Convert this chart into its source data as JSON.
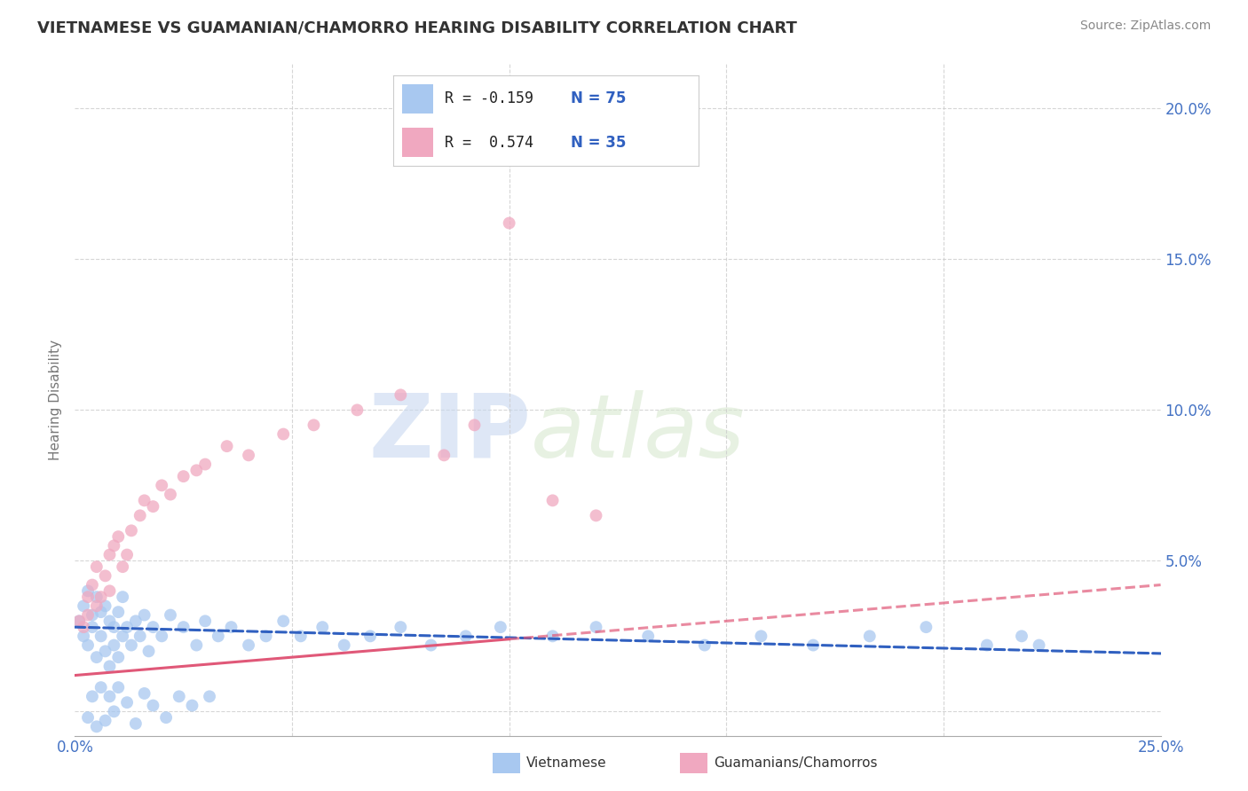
{
  "title": "VIETNAMESE VS GUAMANIAN/CHAMORRO HEARING DISABILITY CORRELATION CHART",
  "source": "Source: ZipAtlas.com",
  "ylabel_label": "Hearing Disability",
  "x_min": 0.0,
  "x_max": 0.25,
  "y_min": -0.008,
  "y_max": 0.215,
  "r_vietnamese": -0.159,
  "n_vietnamese": 75,
  "r_guamanian": 0.574,
  "n_guamanian": 35,
  "color_vietnamese": "#A8C8F0",
  "color_guamanian": "#F0A8C0",
  "color_trend_vietnamese": "#3060C0",
  "color_trend_guamanian": "#E05878",
  "watermark_zip": "ZIP",
  "watermark_atlas": "atlas",
  "legend_label_vietnamese": "Vietnamese",
  "legend_label_guamanian": "Guamanians/Chamorros",
  "viet_intercept": 0.028,
  "viet_slope": -0.035,
  "guam_intercept": 0.012,
  "guam_slope": 0.12,
  "vietnamese_x": [
    0.001,
    0.002,
    0.002,
    0.003,
    0.003,
    0.004,
    0.004,
    0.005,
    0.005,
    0.006,
    0.006,
    0.007,
    0.007,
    0.008,
    0.008,
    0.009,
    0.009,
    0.01,
    0.01,
    0.011,
    0.011,
    0.012,
    0.013,
    0.014,
    0.015,
    0.016,
    0.017,
    0.018,
    0.02,
    0.022,
    0.025,
    0.028,
    0.03,
    0.033,
    0.036,
    0.04,
    0.044,
    0.048,
    0.052,
    0.057,
    0.062,
    0.068,
    0.075,
    0.082,
    0.09,
    0.098,
    0.11,
    0.12,
    0.132,
    0.145,
    0.158,
    0.17,
    0.183,
    0.196,
    0.21,
    0.218,
    0.222,
    0.003,
    0.004,
    0.005,
    0.006,
    0.007,
    0.008,
    0.009,
    0.01,
    0.012,
    0.014,
    0.016,
    0.018,
    0.021,
    0.024,
    0.027,
    0.031
  ],
  "vietnamese_y": [
    0.03,
    0.025,
    0.035,
    0.022,
    0.04,
    0.028,
    0.032,
    0.018,
    0.038,
    0.025,
    0.033,
    0.02,
    0.035,
    0.015,
    0.03,
    0.022,
    0.028,
    0.018,
    0.033,
    0.025,
    0.038,
    0.028,
    0.022,
    0.03,
    0.025,
    0.032,
    0.02,
    0.028,
    0.025,
    0.032,
    0.028,
    0.022,
    0.03,
    0.025,
    0.028,
    0.022,
    0.025,
    0.03,
    0.025,
    0.028,
    0.022,
    0.025,
    0.028,
    0.022,
    0.025,
    0.028,
    0.025,
    0.028,
    0.025,
    0.022,
    0.025,
    0.022,
    0.025,
    0.028,
    0.022,
    0.025,
    0.022,
    -0.002,
    0.005,
    -0.005,
    0.008,
    -0.003,
    0.005,
    0.0,
    0.008,
    0.003,
    -0.004,
    0.006,
    0.002,
    -0.002,
    0.005,
    0.002,
    0.005
  ],
  "guamanian_x": [
    0.001,
    0.002,
    0.003,
    0.003,
    0.004,
    0.005,
    0.005,
    0.006,
    0.007,
    0.008,
    0.008,
    0.009,
    0.01,
    0.011,
    0.012,
    0.013,
    0.015,
    0.016,
    0.018,
    0.02,
    0.022,
    0.025,
    0.028,
    0.03,
    0.035,
    0.04,
    0.048,
    0.055,
    0.065,
    0.075,
    0.085,
    0.092,
    0.1,
    0.11,
    0.12
  ],
  "guamanian_y": [
    0.03,
    0.028,
    0.038,
    0.032,
    0.042,
    0.035,
    0.048,
    0.038,
    0.045,
    0.04,
    0.052,
    0.055,
    0.058,
    0.048,
    0.052,
    0.06,
    0.065,
    0.07,
    0.068,
    0.075,
    0.072,
    0.078,
    0.08,
    0.082,
    0.088,
    0.085,
    0.092,
    0.095,
    0.1,
    0.105,
    0.085,
    0.095,
    0.162,
    0.07,
    0.065
  ]
}
